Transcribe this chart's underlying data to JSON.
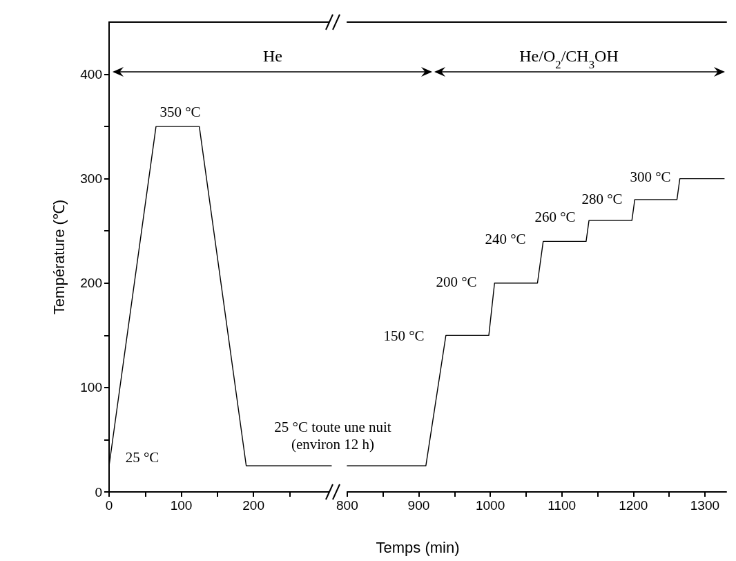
{
  "chart_data": [
    {
      "type": "line",
      "ylabel": "Température (℃)",
      "color": "#000000",
      "marker": "none",
      "line_style": "solid",
      "grid": false,
      "x": [
        0,
        65,
        125,
        190,
        308
      ],
      "values": [
        25,
        350,
        350,
        25,
        25
      ],
      "xlim": [
        0,
        308
      ],
      "xticks": [
        0,
        {
          "value": 50,
          "label": null
        },
        100,
        {
          "value": 150,
          "label": null
        },
        200,
        {
          "value": 250,
          "label": null
        }
      ],
      "ylim": [
        0,
        450
      ],
      "yticks": [
        0,
        {
          "value": 50,
          "label": null
        },
        100,
        {
          "value": 150,
          "label": null
        },
        200,
        {
          "value": 250,
          "label": null
        },
        300,
        {
          "value": 350,
          "label": null
        },
        400
      ],
      "annotations": [
        "He",
        "350 °C",
        "25 °C"
      ]
    },
    {
      "type": "line",
      "xlabel": "Temps (min)",
      "color": "#000000",
      "marker": "none",
      "line_style": "solid",
      "grid": false,
      "tick_labels": "x",
      "x": [
        800,
        910,
        938,
        998,
        1006,
        1066,
        1074,
        1134,
        1138,
        1198,
        1202,
        1261,
        1265,
        1327
      ],
      "values": [
        25,
        25,
        150,
        150,
        200,
        200,
        240,
        240,
        260,
        260,
        280,
        280,
        300,
        300
      ],
      "xlim": [
        800,
        1330
      ],
      "xticks": [
        800,
        {
          "value": 850,
          "label": null
        },
        900,
        {
          "value": 950,
          "label": null
        },
        1000,
        {
          "value": 1050,
          "label": null
        },
        1100,
        {
          "value": 1150,
          "label": null
        },
        1200,
        {
          "value": 1250,
          "label": null
        },
        1300
      ],
      "ylim": [
        0,
        450
      ],
      "annotations": [
        "He/O$_{2}$/CH$_{3}$OH",
        "25 °C toute une nuit\n(environ 12 h)",
        "150 °C",
        "200 °C",
        "240 °C",
        "260 °C",
        "280 °C",
        "300 °C"
      ]
    }
  ]
}
